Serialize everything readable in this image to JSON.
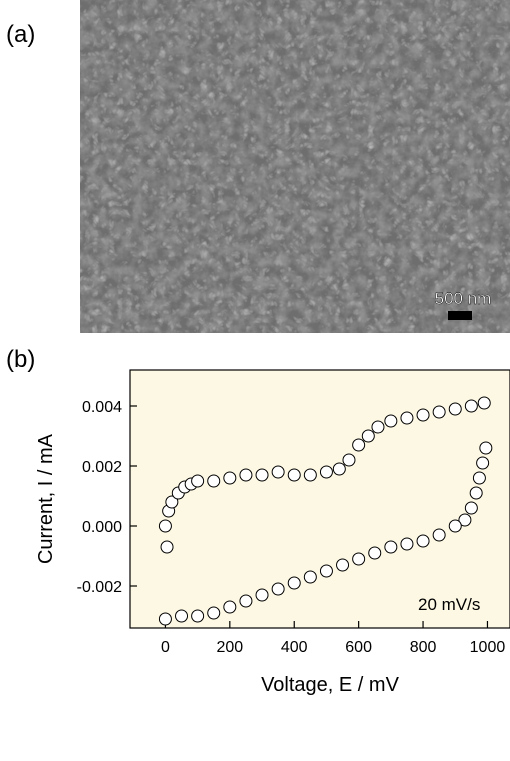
{
  "panel_labels": [
    "(a)",
    "(b)"
  ],
  "scale_bar": "500 nm",
  "chart_data": {
    "type": "scatter",
    "xlabel": "Voltage, E / mV",
    "ylabel": "Current, I / mA",
    "annotation": "20 mV/s",
    "xlim": [
      -110,
      1070
    ],
    "ylim": [
      -0.0034,
      0.0052
    ],
    "xticks": [
      0,
      200,
      400,
      600,
      800,
      1000
    ],
    "yticks": [
      0.004,
      0.002,
      {
        "value": 0,
        "label": "0.000"
      },
      -0.002
    ],
    "series": [
      {
        "color": "#000000",
        "x": [
          0,
          5,
          10,
          20,
          40,
          60,
          80,
          100,
          150,
          200,
          250,
          300,
          350,
          400,
          450,
          500,
          540,
          570,
          600,
          630,
          660,
          700,
          750,
          800,
          850,
          900,
          950,
          990,
          995,
          985,
          975,
          965,
          950,
          930,
          900,
          850,
          800,
          750,
          700,
          650,
          600,
          550,
          500,
          450,
          400,
          350,
          300,
          250,
          200,
          150,
          100,
          50,
          0
        ],
        "values": [
          0.0,
          -0.0007,
          0.0005,
          0.0008,
          0.0011,
          0.0013,
          0.0014,
          0.0015,
          0.0015,
          0.0016,
          0.0017,
          0.0017,
          0.0018,
          0.0017,
          0.0017,
          0.0018,
          0.0019,
          0.0022,
          0.0027,
          0.003,
          0.0033,
          0.0035,
          0.0036,
          0.0037,
          0.0038,
          0.0039,
          0.004,
          0.0041,
          0.0026,
          0.0021,
          0.0016,
          0.0011,
          0.0006,
          0.0002,
          0.0,
          -0.0003,
          -0.0005,
          -0.0006,
          -0.0007,
          -0.0009,
          -0.0011,
          -0.0013,
          -0.0015,
          -0.0017,
          -0.0019,
          -0.0021,
          -0.0023,
          -0.0025,
          -0.0027,
          -0.0029,
          -0.003,
          -0.003,
          -0.0031
        ]
      }
    ]
  }
}
